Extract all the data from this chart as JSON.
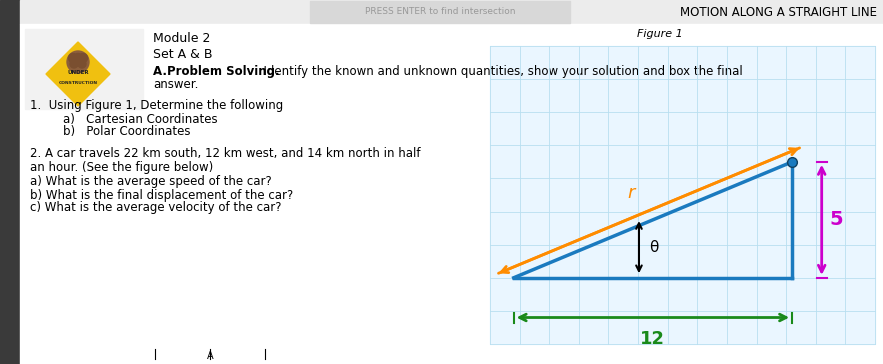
{
  "title": "MOTION ALONG A STRAIGHT LINE",
  "bg_color": "#ffffff",
  "module_text": "Module 2",
  "set_text": "Set A & B",
  "problem_bold": "A.Problem Solving.",
  "problem_rest": "  Identify the known and unknown quantities, show your solution and box the final",
  "problem_rest2": "answer.",
  "q1_line1": "1.  Using Figure 1, Determine the following",
  "q1_line2": "    a)   Cartesian Coordinates",
  "q1_line3": "    b)   Polar Coordinates",
  "q2_line1": "2. A car travels 22 km south, 12 km west, and 14 km north in half",
  "q2_line2": "an hour. (See the figure below)",
  "q2_line3": "a) What is the average speed of the car?",
  "q2_line4": "b) What is the final displacement of the car?",
  "q2_line5": "c) What is the average velocity of the car?",
  "figure1_label": "Figure 1",
  "grid_color": "#b8dff0",
  "blue_color": "#1a7abf",
  "orange_color": "#ff8c00",
  "green_color": "#1a8a1a",
  "magenta_color": "#cc00cc",
  "label_12": "12",
  "label_5": "5",
  "label_r": "r",
  "label_theta": "θ",
  "press_enter_text": "PRESS ENTER to find intersection"
}
